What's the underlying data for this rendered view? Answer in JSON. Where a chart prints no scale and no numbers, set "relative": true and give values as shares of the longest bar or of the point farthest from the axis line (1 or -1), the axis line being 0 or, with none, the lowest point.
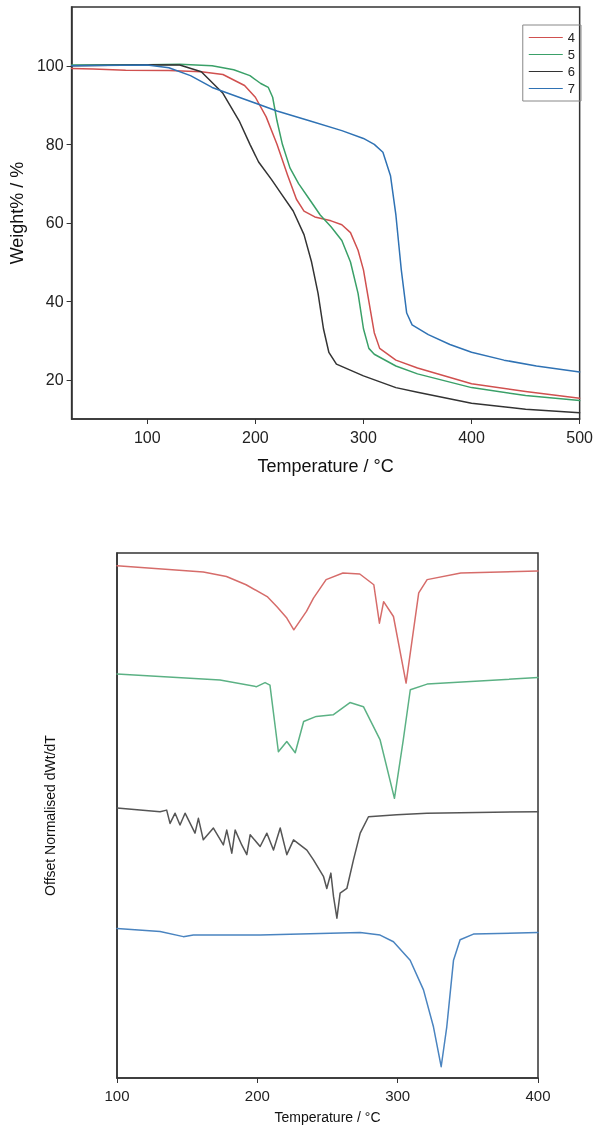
{
  "chart_data": [
    {
      "type": "line",
      "xlabel": "Temperature / °C",
      "ylabel": "Weight% / %",
      "xlim": [
        30,
        500
      ],
      "ylim": [
        10,
        115
      ],
      "xticks": [
        100,
        200,
        300,
        400,
        500
      ],
      "yticks": [
        20,
        40,
        60,
        80,
        100
      ],
      "legend": "top right",
      "grid": false,
      "marker": "none",
      "line_style": "solid",
      "series": [
        {
          "name": "4",
          "color": "#d0504f",
          "x": [
            30,
            50,
            80,
            120,
            150,
            170,
            190,
            200,
            210,
            220,
            230,
            238,
            245,
            255,
            270,
            280,
            288,
            295,
            300,
            305,
            310,
            315,
            330,
            350,
            400,
            450,
            500
          ],
          "values": [
            99.3,
            99.2,
            98.9,
            98.8,
            98.5,
            97.8,
            95,
            92,
            87,
            80,
            72,
            66,
            63,
            61.5,
            60.5,
            59.5,
            57.5,
            53,
            48,
            40,
            32,
            28,
            25,
            23,
            19,
            17,
            15.3
          ]
        },
        {
          "name": "5",
          "color": "#3aa068",
          "x": [
            30,
            100,
            130,
            160,
            180,
            195,
            205,
            212,
            216,
            220,
            225,
            232,
            240,
            250,
            260,
            270,
            280,
            288,
            295,
            300,
            305,
            310,
            330,
            350,
            400,
            450,
            500
          ],
          "values": [
            100.2,
            100.3,
            100.4,
            100,
            99,
            97.5,
            95.5,
            94.5,
            92,
            86,
            80,
            74,
            70,
            66,
            62,
            59,
            55.5,
            50,
            42,
            33,
            28,
            26.5,
            23.5,
            21.5,
            18,
            16,
            14.7
          ]
        },
        {
          "name": "6",
          "color": "#333333",
          "x": [
            30,
            100,
            130,
            150,
            170,
            185,
            195,
            203,
            215,
            225,
            235,
            245,
            252,
            258,
            263,
            268,
            275,
            300,
            330,
            350,
            400,
            450,
            500
          ],
          "values": [
            100,
            100.3,
            100.2,
            98.5,
            93,
            86,
            80,
            75.5,
            71,
            67,
            63,
            57,
            50,
            42,
            33,
            27,
            24,
            21,
            18,
            16.8,
            14,
            12.5,
            11.6
          ]
        },
        {
          "name": "7",
          "color": "#2f72b4",
          "x": [
            30,
            100,
            120,
            140,
            160,
            190,
            220,
            250,
            280,
            300,
            310,
            318,
            325,
            330,
            335,
            340,
            345,
            360,
            380,
            400,
            430,
            460,
            500
          ],
          "values": [
            100,
            100.2,
            99.5,
            97.5,
            94.5,
            91.5,
            88.5,
            86,
            83.5,
            81.5,
            80,
            78,
            72,
            62,
            48,
            37,
            34,
            31.5,
            29,
            27,
            25,
            23.5,
            22
          ]
        }
      ]
    },
    {
      "type": "line",
      "xlabel": "Temperature / °C",
      "ylabel": "Offset Normalised dWt/dT",
      "relative": true,
      "xlim": [
        100,
        400
      ],
      "xticks": [
        100,
        200,
        300,
        400
      ],
      "tick_labels": "x",
      "grid": false,
      "legend": false,
      "marker": "none",
      "line_style": "solid",
      "series": [
        {
          "color": "#d66c6a",
          "x": [
            100,
            161.5,
            178,
            192,
            207,
            214,
            221,
            226,
            235,
            240,
            249,
            261,
            273,
            283,
            287,
            290,
            297,
            306,
            315,
            321,
            345,
            400
          ],
          "values": [
            1,
            0.988,
            0.979,
            0.963,
            0.94,
            0.92,
            0.898,
            0.875,
            0.911,
            0.937,
            0.973,
            0.986,
            0.984,
            0.963,
            0.888,
            0.93,
            0.901,
            0.771,
            0.947,
            0.973,
            0.986,
            0.99
          ]
        },
        {
          "color": "#5bb184",
          "x": [
            100,
            173.4,
            199.5,
            205.5,
            209,
            215,
            221,
            227,
            233,
            242,
            254,
            266,
            275.6,
            287.5,
            297.7,
            304,
            309,
            321,
            400
          ],
          "values": [
            0.789,
            0.777,
            0.764,
            0.772,
            0.767,
            0.637,
            0.657,
            0.635,
            0.696,
            0.706,
            0.709,
            0.733,
            0.725,
            0.66,
            0.546,
            0.66,
            0.758,
            0.769,
            0.782
          ]
        },
        {
          "color": "#555555",
          "x": [
            100,
            130.7,
            135.4,
            137.8,
            141.4,
            144.9,
            148.5,
            155.6,
            158,
            161.5,
            168.7,
            175.8,
            178.2,
            181.8,
            184.2,
            188.9,
            192.5,
            194.9,
            202,
            206.8,
            211.5,
            216.3,
            221,
            225.8,
            235.3,
            240,
            247.2,
            249.5,
            252.4,
            254.3,
            256.7,
            259,
            263.8,
            268.5,
            273.3,
            279.2,
            299.4,
            320.8,
            400
          ],
          "values": [
            0.527,
            0.52,
            0.523,
            0.497,
            0.517,
            0.494,
            0.517,
            0.478,
            0.507,
            0.465,
            0.488,
            0.455,
            0.484,
            0.439,
            0.484,
            0.455,
            0.436,
            0.475,
            0.452,
            0.478,
            0.445,
            0.488,
            0.436,
            0.465,
            0.445,
            0.426,
            0.393,
            0.37,
            0.4,
            0.354,
            0.312,
            0.361,
            0.37,
            0.426,
            0.478,
            0.51,
            0.514,
            0.517,
            0.52
          ]
        },
        {
          "color": "#4a84c0",
          "x": [
            100,
            130.7,
            147.3,
            154.4,
            202,
            273.3,
            287.5,
            297,
            308.9,
            318.4,
            325.5,
            331,
            335,
            339.8,
            344.5,
            354,
            400
          ],
          "values": [
            0.292,
            0.286,
            0.276,
            0.279,
            0.279,
            0.284,
            0.279,
            0.266,
            0.23,
            0.172,
            0.1,
            0.022,
            0.1,
            0.23,
            0.27,
            0.281,
            0.284
          ]
        }
      ]
    }
  ]
}
